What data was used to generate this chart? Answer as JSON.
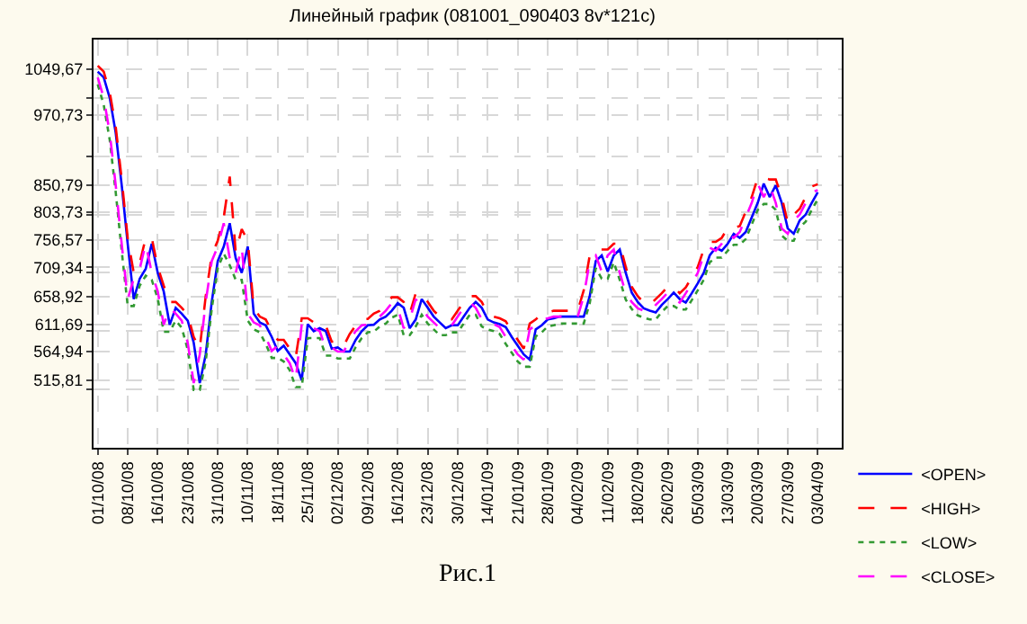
{
  "chart_data": {
    "type": "line",
    "title": "Линейный график (081001_090403 8v*121c)",
    "categories": [
      "01/10/08",
      null,
      null,
      null,
      null,
      "08/10/08",
      null,
      null,
      null,
      null,
      "16/10/08",
      null,
      null,
      null,
      null,
      "23/10/08",
      null,
      null,
      null,
      null,
      "31/10/08",
      null,
      null,
      null,
      null,
      "10/11/08",
      null,
      null,
      null,
      null,
      "18/11/08",
      null,
      null,
      null,
      null,
      "25/11/08",
      null,
      null,
      null,
      null,
      "02/12/08",
      null,
      null,
      null,
      null,
      "09/12/08",
      null,
      null,
      null,
      null,
      "16/12/08",
      null,
      null,
      null,
      null,
      "23/12/08",
      null,
      null,
      null,
      null,
      "30/12/08",
      null,
      null,
      null,
      null,
      "14/01/09",
      null,
      null,
      null,
      null,
      "21/01/09",
      null,
      null,
      null,
      null,
      "28/01/09",
      null,
      null,
      null,
      null,
      "04/02/09",
      null,
      null,
      null,
      null,
      "11/02/09",
      null,
      null,
      null,
      null,
      "18/02/09",
      null,
      null,
      null,
      null,
      "26/02/09",
      null,
      null,
      null,
      null,
      "05/03/09",
      null,
      null,
      null,
      null,
      "13/03/09",
      null,
      null,
      null,
      null,
      "20/03/09",
      null,
      null,
      null,
      null,
      "27/03/09",
      null,
      null,
      null,
      null,
      "03/04/09"
    ],
    "series": [
      {
        "name": "<OPEN>",
        "color": "#0000ff",
        "line_style": "solid",
        "values": [
          1045,
          1035,
          1000,
          940,
          850,
          749,
          655,
          690,
          707,
          750,
          700,
          668,
          611,
          640,
          630,
          618,
          580,
          511,
          560,
          650,
          720,
          745,
          785,
          725,
          700,
          745,
          630,
          615,
          610,
          590,
          566,
          575,
          560,
          545,
          516,
          612,
          600,
          605,
          600,
          570,
          572,
          565,
          565,
          585,
          600,
          610,
          611,
          620,
          625,
          635,
          648,
          640,
          605,
          620,
          655,
          640,
          625,
          615,
          605,
          610,
          610,
          625,
          640,
          650,
          640,
          620,
          615,
          612,
          607,
          590,
          575,
          560,
          551,
          603,
          610,
          620,
          622,
          625,
          625,
          625,
          625,
          625,
          660,
          720,
          730,
          702,
          730,
          740,
          700,
          666,
          650,
          639,
          635,
          632,
          645,
          655,
          666,
          655,
          649,
          665,
          682,
          700,
          730,
          743,
          738,
          750,
          767,
          760,
          770,
          795,
          820,
          853,
          830,
          850,
          820,
          776,
          767,
          790,
          800,
          820,
          838
        ]
      },
      {
        "name": "<HIGH>",
        "color": "#ff0000",
        "line_style": "dashed",
        "values": [
          1055,
          1045,
          1010,
          950,
          860,
          759,
          700,
          717,
          760,
          760,
          710,
          678,
          650,
          650,
          640,
          628,
          590,
          570,
          660,
          730,
          755,
          795,
          865,
          735,
          775,
          755,
          640,
          625,
          620,
          600,
          585,
          585,
          570,
          555,
          622,
          622,
          615,
          615,
          610,
          582,
          582,
          575,
          595,
          610,
          620,
          621,
          630,
          635,
          645,
          658,
          658,
          650,
          630,
          665,
          665,
          650,
          635,
          625,
          620,
          620,
          635,
          650,
          660,
          660,
          650,
          630,
          625,
          622,
          617,
          600,
          585,
          570,
          613,
          620,
          630,
          632,
          635,
          635,
          635,
          635,
          635,
          670,
          730,
          740,
          740,
          740,
          750,
          750,
          710,
          676,
          660,
          649,
          645,
          655,
          665,
          676,
          676,
          665,
          675,
          692,
          710,
          740,
          753,
          753,
          760,
          777,
          777,
          780,
          805,
          830,
          863,
          863,
          860,
          860,
          830,
          786,
          800,
          810,
          830,
          848,
          852
        ]
      },
      {
        "name": "<LOW>",
        "color": "#339933",
        "line_style": "dotted",
        "values": [
          1023,
          988,
          928,
          838,
          737,
          643,
          643,
          678,
          695,
          688,
          656,
          599,
          599,
          618,
          606,
          568,
          499,
          499,
          548,
          638,
          708,
          733,
          713,
          688,
          688,
          618,
          603,
          598,
          578,
          554,
          554,
          548,
          533,
          504,
          504,
          588,
          588,
          588,
          558,
          558,
          553,
          553,
          553,
          573,
          588,
          598,
          599,
          608,
          613,
          623,
          628,
          593,
          593,
          608,
          628,
          613,
          603,
          593,
          593,
          598,
          598,
          613,
          628,
          628,
          608,
          603,
          600,
          595,
          578,
          563,
          548,
          539,
          539,
          591,
          598,
          608,
          610,
          613,
          613,
          613,
          613,
          613,
          648,
          708,
          690,
          690,
          718,
          688,
          654,
          638,
          627,
          623,
          620,
          620,
          633,
          643,
          643,
          637,
          637,
          653,
          670,
          688,
          718,
          726,
          726,
          738,
          748,
          748,
          758,
          783,
          808,
          818,
          818,
          808,
          764,
          755,
          755,
          778,
          788,
          808,
          826
        ]
      },
      {
        "name": "<CLOSE>",
        "color": "#ff00ff",
        "line_style": "dashed",
        "values": [
          1035,
          1000,
          940,
          850,
          749,
          655,
          690,
          707,
          750,
          700,
          668,
          611,
          640,
          630,
          618,
          580,
          511,
          560,
          650,
          720,
          745,
          785,
          725,
          700,
          745,
          630,
          615,
          610,
          590,
          566,
          575,
          560,
          545,
          516,
          612,
          600,
          605,
          600,
          570,
          572,
          565,
          565,
          585,
          600,
          610,
          611,
          620,
          625,
          635,
          648,
          640,
          605,
          620,
          655,
          640,
          625,
          615,
          605,
          610,
          610,
          625,
          640,
          650,
          640,
          620,
          615,
          612,
          607,
          590,
          575,
          560,
          551,
          603,
          610,
          620,
          622,
          625,
          625,
          625,
          625,
          625,
          660,
          720,
          730,
          702,
          730,
          740,
          700,
          666,
          650,
          639,
          635,
          632,
          645,
          655,
          666,
          655,
          649,
          665,
          682,
          700,
          730,
          743,
          738,
          750,
          767,
          760,
          770,
          795,
          820,
          853,
          830,
          850,
          820,
          776,
          767,
          790,
          800,
          820,
          838,
          842
        ]
      }
    ],
    "ylim": [
      400,
      1100
    ],
    "yticks": [
      {
        "value": 1049.67,
        "label": "1049,67"
      },
      {
        "value": 1000,
        "label": null
      },
      {
        "value": 970.73,
        "label": "970,73"
      },
      {
        "value": 900,
        "label": null
      },
      {
        "value": 850.79,
        "label": "850,79"
      },
      {
        "value": 803.73,
        "label": "803,73"
      },
      {
        "value": 800,
        "label": null
      },
      {
        "value": 756.57,
        "label": "756,57"
      },
      {
        "value": 709.34,
        "label": "709,34"
      },
      {
        "value": 700,
        "label": null
      },
      {
        "value": 658.92,
        "label": "658,92"
      },
      {
        "value": 611.69,
        "label": "611,69"
      },
      {
        "value": 600,
        "label": null
      },
      {
        "value": 564.94,
        "label": "564,94"
      },
      {
        "value": 515.81,
        "label": "515,81"
      },
      {
        "value": 500,
        "label": null
      }
    ],
    "grid": true,
    "legend": "bottom right",
    "annotations": [
      "Рис.1"
    ]
  }
}
